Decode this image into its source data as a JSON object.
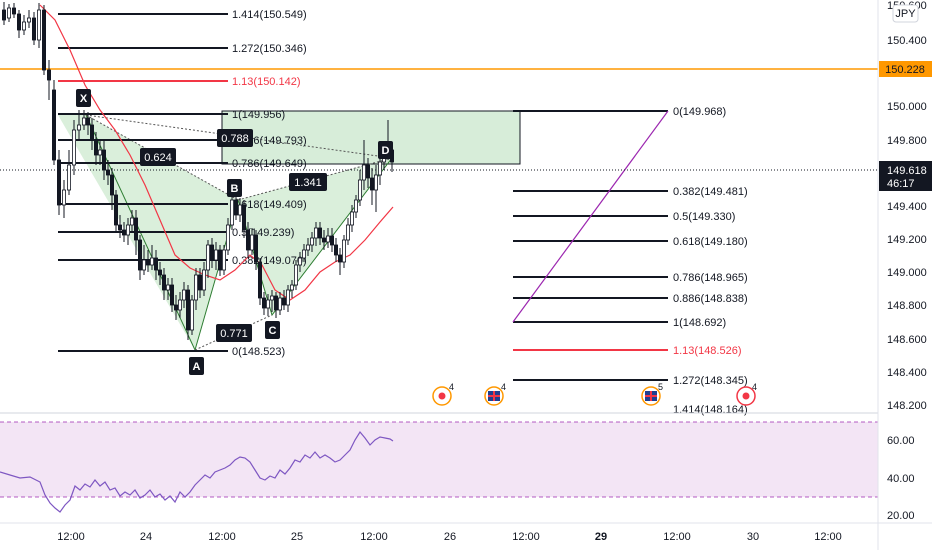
{
  "symbol_currency": "JPY",
  "price_axis": {
    "labels": [
      "150.600",
      "150.400",
      "150.000",
      "149.800",
      "149.400",
      "149.200",
      "149.000",
      "148.800",
      "148.600",
      "148.400",
      "148.200"
    ],
    "orange_line_price": "150.228",
    "current_price": "149.618",
    "countdown": "46:17"
  },
  "time_axis": {
    "labels": [
      "12:00",
      "24",
      "12:00",
      "25",
      "12:00",
      "26",
      "12:00",
      "29",
      "12:00",
      "30",
      "12:00"
    ],
    "bold_labels": [
      "29"
    ]
  },
  "rsi_axis": {
    "labels": [
      "60.00",
      "40.00",
      "20.00"
    ]
  },
  "pattern_points": {
    "x": "X",
    "a": "A",
    "b": "B",
    "c": "C",
    "d": "D"
  },
  "ratio_boxes": {
    "xb": "0.624",
    "ac": "0.771",
    "bd": "1.341",
    "xd": "0.788"
  },
  "left_fib_levels": [
    {
      "label": "1.414(150.549)",
      "color": "#131722"
    },
    {
      "label": "1.272(150.346)",
      "color": "#131722"
    },
    {
      "label": "1.13(150.142)",
      "color": "#f23645"
    },
    {
      "label": "1(149.956)",
      "color": "#131722"
    },
    {
      "label": "0.886(149.793)",
      "color": "#131722"
    },
    {
      "label": "0.786(149.649)",
      "color": "#131722"
    },
    {
      "label": "0.618(149.409)",
      "color": "#131722"
    },
    {
      "label": "0.5(149.239)",
      "color": "#131722"
    },
    {
      "label": "0.382(149.070)",
      "color": "#131722"
    },
    {
      "label": "0(148.523)",
      "color": "#131722"
    }
  ],
  "right_fib_levels": [
    {
      "label": "0(149.968)",
      "color": "#131722"
    },
    {
      "label": "0.382(149.481)",
      "color": "#131722"
    },
    {
      "label": "0.5(149.330)",
      "color": "#131722"
    },
    {
      "label": "0.618(149.180)",
      "color": "#131722"
    },
    {
      "label": "0.786(148.965)",
      "color": "#131722"
    },
    {
      "label": "0.886(148.838)",
      "color": "#131722"
    },
    {
      "label": "1(148.692)",
      "color": "#131722"
    },
    {
      "label": "1.13(148.526)",
      "color": "#f23645"
    },
    {
      "label": "1.272(148.345)",
      "color": "#131722"
    },
    {
      "label": "1.414(148.164)",
      "color": "#131722"
    }
  ],
  "events": [
    {
      "icon": "alarm-event-icon",
      "count": "4"
    },
    {
      "icon": "uk-flag-event-icon",
      "count": "4"
    },
    {
      "icon": "uk-flag-event-icon",
      "count": "5"
    },
    {
      "icon": "alarm-event-icon",
      "count": "4"
    }
  ],
  "colors": {
    "up": "#ffffff",
    "down": "#131722",
    "ma": "#f23645",
    "pattern_fill": "#cde9cf",
    "pattern_stroke": "#2e7d32",
    "orange": "#ff9800",
    "rsi_band": "#f3e5f5",
    "rsi_line": "#7e57c2",
    "projection": "#9c27b0"
  }
}
